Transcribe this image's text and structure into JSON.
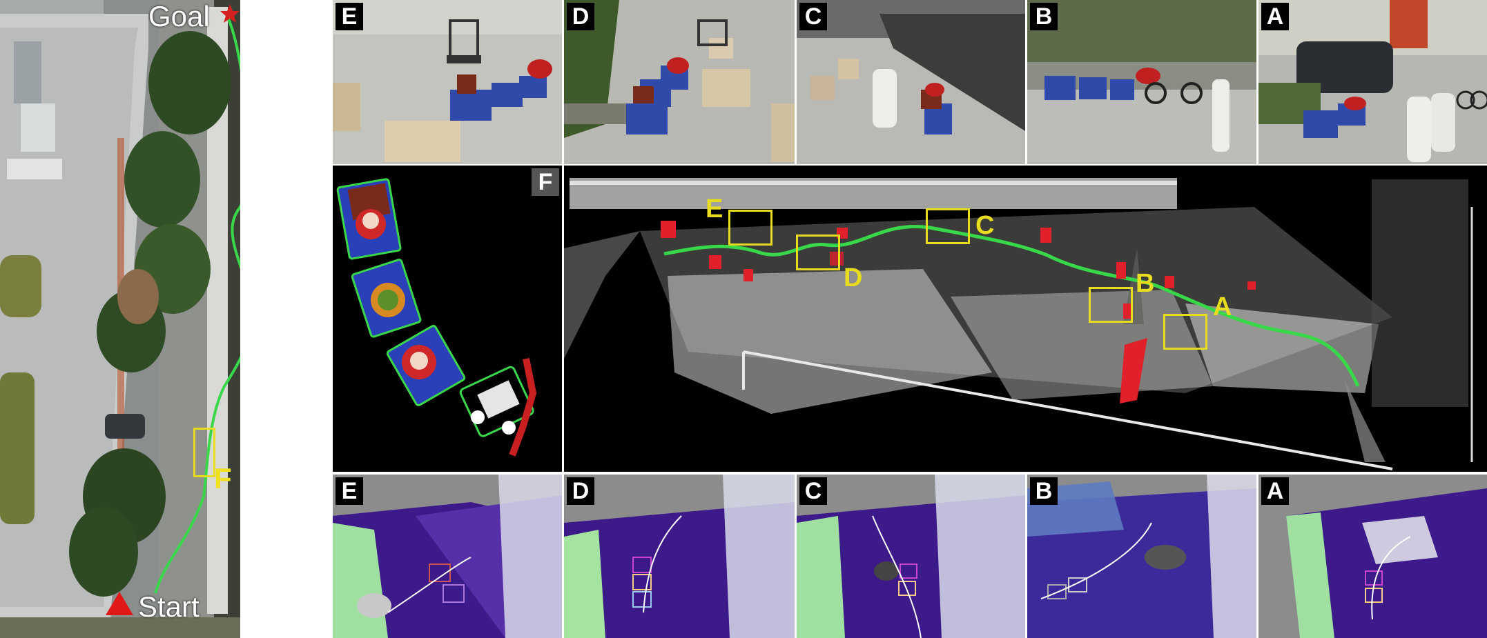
{
  "aerial": {
    "goal_label": "Goal",
    "start_label": "Start",
    "focus_label": "F"
  },
  "photos": [
    {
      "id": "E",
      "label": "E"
    },
    {
      "id": "D",
      "label": "D"
    },
    {
      "id": "C",
      "label": "C"
    },
    {
      "id": "B",
      "label": "B"
    },
    {
      "id": "A",
      "label": "A"
    }
  ],
  "tracking_panel": {
    "label": "F"
  },
  "pointcloud_map": {
    "checkpoints": [
      {
        "label": "E"
      },
      {
        "label": "D"
      },
      {
        "label": "C"
      },
      {
        "label": "B"
      },
      {
        "label": "A"
      }
    ]
  },
  "elevation_maps": [
    {
      "id": "E",
      "label": "E"
    },
    {
      "id": "D",
      "label": "D"
    },
    {
      "id": "C",
      "label": "C"
    },
    {
      "id": "B",
      "label": "B"
    },
    {
      "id": "A",
      "label": "A"
    }
  ],
  "colors": {
    "trajectory": "#39d84a",
    "checkpoint_box": "#e8dc1e",
    "obstacle": "#e0202a",
    "goal_star": "#d42020",
    "start_triangle": "#e01818",
    "badge_bg": "#000000"
  },
  "icons": {
    "goal": "star-icon",
    "start": "triangle-icon"
  }
}
